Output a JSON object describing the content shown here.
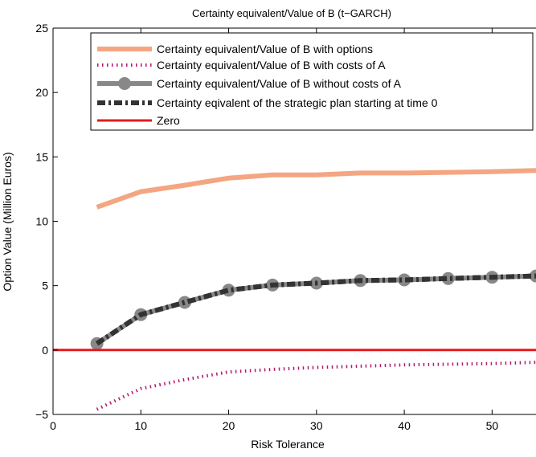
{
  "chart_data": {
    "type": "line",
    "title": "Certainty equivalent/Value of B (t−GARCH)",
    "xlabel": "Risk Tolerance",
    "ylabel": "Option Value (Million Euros)",
    "xlim": [
      0,
      55
    ],
    "ylim": [
      -5,
      25
    ],
    "xticks": [
      0,
      10,
      20,
      30,
      40,
      50
    ],
    "yticks": [
      -5,
      0,
      5,
      10,
      15,
      20,
      25
    ],
    "grid": false,
    "legend_position": "top-right",
    "series": [
      {
        "name": "Certainty equivalent/Value of B with options",
        "color": "#f4a582",
        "style": "thick-solid",
        "x": [
          5,
          10,
          15,
          20,
          25,
          30,
          35,
          40,
          45,
          50,
          55
        ],
        "y": [
          11.1,
          12.3,
          12.8,
          13.35,
          13.6,
          13.6,
          13.75,
          13.75,
          13.8,
          13.85,
          13.95
        ]
      },
      {
        "name": "Certainty equivalent/Value of B with costs of A",
        "color": "#b2186b",
        "style": "dotted",
        "x": [
          5,
          10,
          15,
          20,
          25,
          30,
          35,
          40,
          45,
          50,
          55
        ],
        "y": [
          -4.6,
          -3.0,
          -2.3,
          -1.7,
          -1.5,
          -1.35,
          -1.25,
          -1.15,
          -1.1,
          -1.05,
          -0.95
        ]
      },
      {
        "name": "Certainty equivalent/Value of B without costs of A",
        "color": "#888888",
        "style": "solid-markers",
        "x": [
          5,
          10,
          15,
          20,
          25,
          30,
          35,
          40,
          45,
          50,
          55
        ],
        "y": [
          0.5,
          2.75,
          3.7,
          4.65,
          5.05,
          5.2,
          5.4,
          5.45,
          5.55,
          5.65,
          5.75
        ]
      },
      {
        "name": "Certainty eqivalent of the strategic plan starting at time 0",
        "color": "#333333",
        "style": "dash-dot",
        "x": [
          5,
          10,
          15,
          20,
          25,
          30,
          35,
          40,
          45,
          50,
          55
        ],
        "y": [
          0.5,
          2.75,
          3.7,
          4.65,
          5.05,
          5.2,
          5.4,
          5.45,
          5.55,
          5.65,
          5.75
        ]
      },
      {
        "name": "Zero",
        "color": "#e31a1c",
        "style": "solid",
        "x": [
          0,
          55
        ],
        "y": [
          0,
          0
        ]
      }
    ]
  }
}
